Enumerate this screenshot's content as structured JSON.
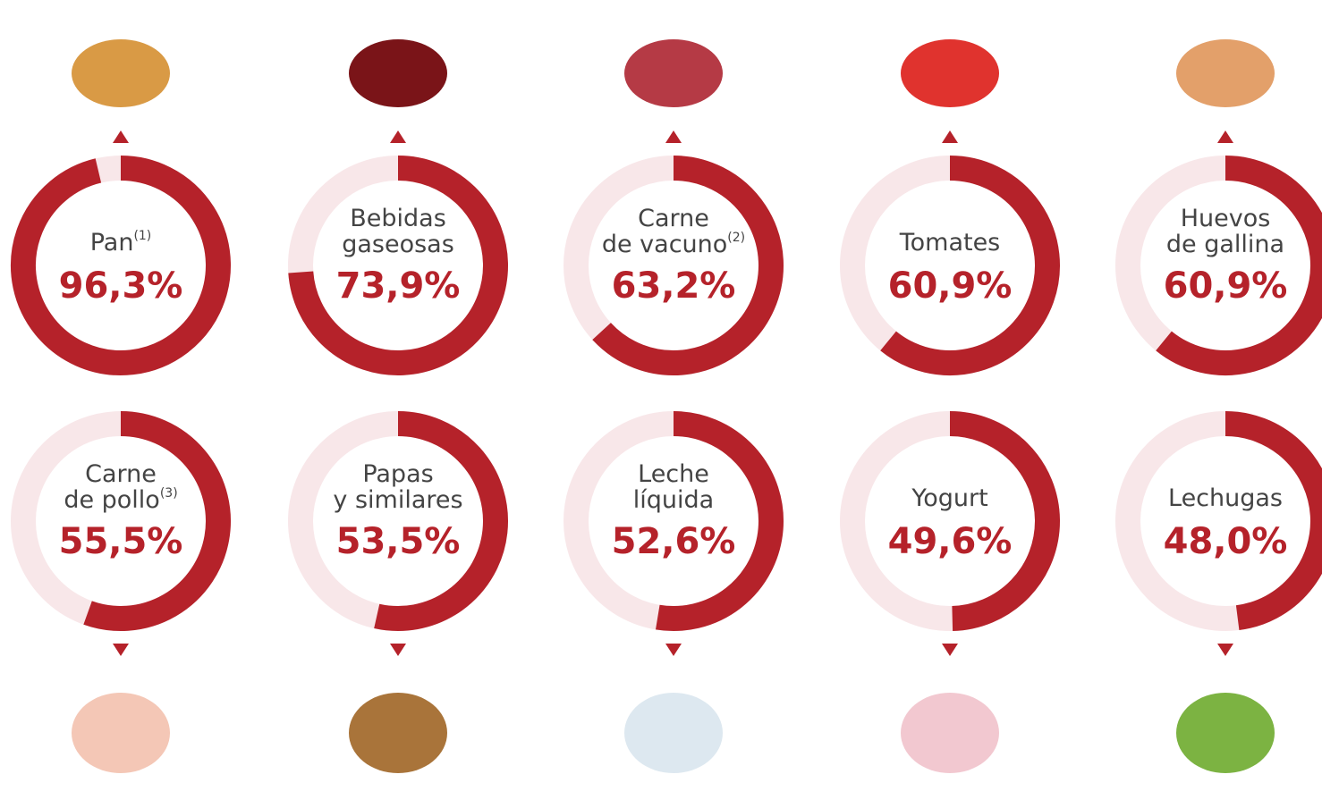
{
  "chart_data": [
    {
      "type": "donut",
      "label_lines": [
        "Pan"
      ],
      "note": "(1)",
      "value": 96.3,
      "value_label": "96,3%",
      "ylim": [
        0,
        100
      ],
      "color": "#b5222a",
      "track_color": "#f8e7e9"
    },
    {
      "type": "donut",
      "label_lines": [
        "Bebidas",
        "gaseosas"
      ],
      "value": 73.9,
      "value_label": "73,9%",
      "ylim": [
        0,
        100
      ],
      "color": "#b5222a",
      "track_color": "#f8e7e9"
    },
    {
      "type": "donut",
      "label_lines": [
        "Carne",
        "de vacuno"
      ],
      "note": "(2)",
      "value": 63.2,
      "value_label": "63,2%",
      "ylim": [
        0,
        100
      ],
      "color": "#b5222a",
      "track_color": "#f8e7e9"
    },
    {
      "type": "donut",
      "label_lines": [
        "Tomates"
      ],
      "value": 60.9,
      "value_label": "60,9%",
      "ylim": [
        0,
        100
      ],
      "color": "#b5222a",
      "track_color": "#f8e7e9"
    },
    {
      "type": "donut",
      "label_lines": [
        "Huevos",
        "de gallina"
      ],
      "value": 60.9,
      "value_label": "60,9%",
      "ylim": [
        0,
        100
      ],
      "color": "#b5222a",
      "track_color": "#f8e7e9"
    },
    {
      "type": "donut",
      "label_lines": [
        "Carne",
        "de pollo"
      ],
      "note": "(3)",
      "value": 55.5,
      "value_label": "55,5%",
      "ylim": [
        0,
        100
      ],
      "color": "#b5222a",
      "track_color": "#f8e7e9"
    },
    {
      "type": "donut",
      "label_lines": [
        "Papas",
        "y similares"
      ],
      "value": 53.5,
      "value_label": "53,5%",
      "ylim": [
        0,
        100
      ],
      "color": "#b5222a",
      "track_color": "#f8e7e9"
    },
    {
      "type": "donut",
      "label_lines": [
        "Leche",
        "líquida"
      ],
      "value": 52.6,
      "value_label": "52,6%",
      "ylim": [
        0,
        100
      ],
      "color": "#b5222a",
      "track_color": "#f8e7e9"
    },
    {
      "type": "donut",
      "label_lines": [
        "Yogurt"
      ],
      "value": 49.6,
      "value_label": "49,6%",
      "ylim": [
        0,
        100
      ],
      "color": "#b5222a",
      "track_color": "#f8e7e9"
    },
    {
      "type": "donut",
      "label_lines": [
        "Lechugas"
      ],
      "value": 48.0,
      "value_label": "48,0%",
      "ylim": [
        0,
        100
      ],
      "color": "#b5222a",
      "track_color": "#f8e7e9"
    }
  ]
}
